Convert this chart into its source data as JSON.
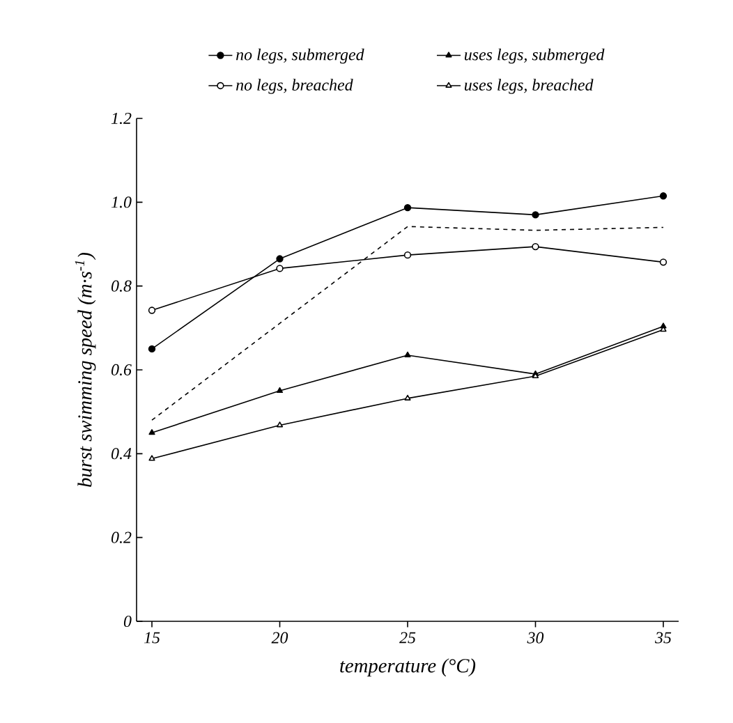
{
  "chart_data": {
    "type": "line",
    "xlabel": "temperature (°C)",
    "ylabel": "burst swimming speed (m·s$^{-1}$)",
    "x": [
      15,
      20,
      25,
      30,
      35
    ],
    "xlim": [
      14.4,
      35.6
    ],
    "xticks": [
      15,
      20,
      25,
      30,
      35
    ],
    "ylim": [
      0,
      1.2
    ],
    "yticks": [
      {
        "value": 0,
        "label": "0"
      },
      {
        "value": 0.2,
        "label": "0.2"
      },
      {
        "value": 0.4,
        "label": "0.4"
      },
      {
        "value": 0.6,
        "label": "0.6"
      },
      {
        "value": 0.8,
        "label": "0.8"
      },
      {
        "value": 1.0,
        "label": "1.0"
      },
      {
        "value": 1.2,
        "label": "1.2"
      }
    ],
    "grid": false,
    "legend": "top",
    "series": [
      {
        "name": "no legs, submerged",
        "color": "#000000",
        "marker": "circle",
        "values": [
          0.65,
          0.865,
          0.987,
          0.97,
          1.015
        ]
      },
      {
        "name": "uses legs, submerged",
        "color": "#000000",
        "marker": "triangle",
        "values": [
          0.45,
          0.55,
          0.635,
          0.59,
          0.704
        ]
      },
      {
        "name": "no legs, breached",
        "color": "#000000",
        "marker": "circle",
        "values": [
          0.742,
          0.842,
          0.874,
          0.894,
          0.857
        ]
      },
      {
        "name": "uses legs, breached",
        "color": "#000000",
        "marker": "triangle",
        "values": [
          0.388,
          0.468,
          0.532,
          0.585,
          0.696
        ]
      },
      {
        "color": "#000000",
        "marker": "none",
        "line_style": "dashed",
        "x": [
          15,
          25,
          30,
          35
        ],
        "values": [
          0.48,
          0.942,
          0.933,
          0.94
        ]
      }
    ]
  }
}
